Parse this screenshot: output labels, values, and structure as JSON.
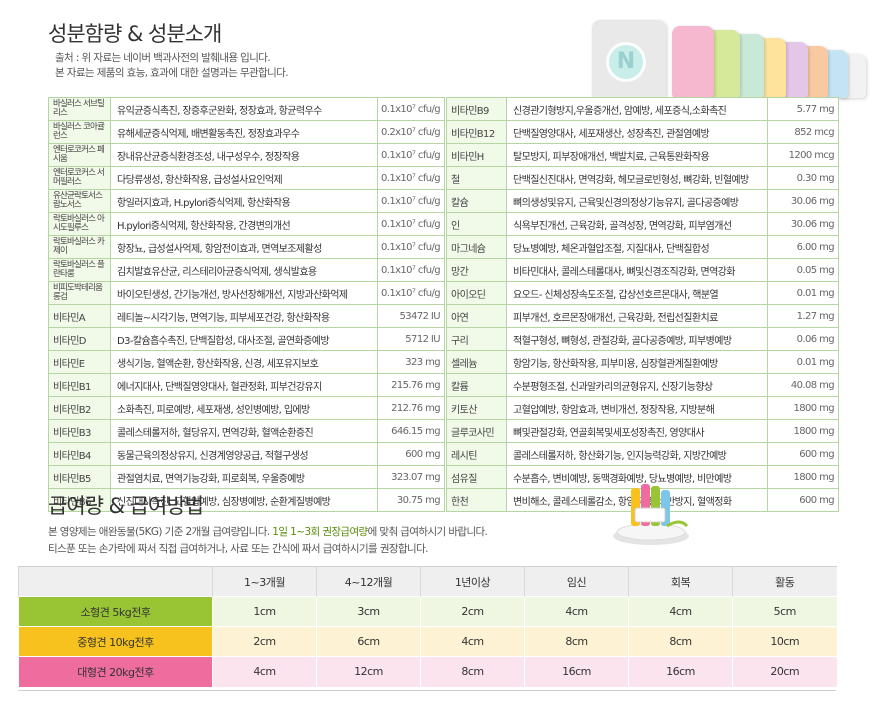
{
  "section1": {
    "title": "성분함량 & 성분소개",
    "note_line1": "출처 : 위 자료는 네이버 백과사전의 발췌내용 입니다.",
    "note_line2": "본 자료는 제품의 효능, 효과에 대한 설명과는 무관합니다."
  },
  "product_logo_letter": "N",
  "product_tube_colors": [
    "#e6e6e6",
    "#f5b8cf",
    "#d6e89a",
    "#c8e8d8",
    "#fde39c",
    "#e3c6e8",
    "#f9c9a2",
    "#c4e4f4",
    "#f2f2f2",
    "#ffffff"
  ],
  "left_table": [
    {
      "name": "바실러스 서브틸리스",
      "desc": "유익균증식촉진, 장증후군완화, 정장효과, 항균력우수",
      "amount": "0.1x10⁷ cfu/g"
    },
    {
      "name": "바실러스 코아귤런스",
      "desc": "유해세균증식억제, 배변활동촉진, 정장효과우수",
      "amount": "0.2x10⁷ cfu/g"
    },
    {
      "name": "엔터로코커스 페시움",
      "desc": "장내유산균증식환경조성, 내구성우수, 정장작용",
      "amount": "0.1x10⁷ cfu/g"
    },
    {
      "name": "엔터로코커스 서머필러스",
      "desc": "다당류생성, 항산화작용, 급성설사요인억제",
      "amount": "0.1x10⁷ cfu/g"
    },
    {
      "name": "유산균락토서스 람노서스",
      "desc": "항일러지효과, H.pylori증식억제, 항산화작용",
      "amount": "0.1x10⁷ cfu/g"
    },
    {
      "name": "락토바실러스 아시도필루스",
      "desc": "H.pylori증식억제, 항산화작용, 간경변의개선",
      "amount": "0.1x10⁷ cfu/g"
    },
    {
      "name": "락토바실러스 카제이",
      "desc": "항장뇨, 급성설사억제, 항암전이효과, 면역보조제활성",
      "amount": "0.1x10⁷ cfu/g"
    },
    {
      "name": "락토바실러스 플란타룸",
      "desc": "김치발효유산균, 리스테리아균증식억제, 생식발효용",
      "amount": "0.1x10⁷ cfu/g"
    },
    {
      "name": "비피도박테리움 롱검",
      "desc": "바이오틴생성, 간기능개선, 방사선장해개선, 지방과산화억제",
      "amount": "0.1x10⁷ cfu/g"
    },
    {
      "name": "비타민A",
      "desc": "레티놀~시각기능, 면역기능, 피부세포건강, 항산화작용",
      "amount": "53472 IU"
    },
    {
      "name": "비타민D",
      "desc": "D3-칼슘흡수촉진, 단백질합성, 대사조절, 골연화증예방",
      "amount": "5712 IU"
    },
    {
      "name": "비타민E",
      "desc": "생식기능, 혈액순환, 항산화작용, 신경, 세포유지보호",
      "amount": "323 mg"
    },
    {
      "name": "비타민B1",
      "desc": "에너지대사, 단백질영양대사, 혈관정화, 피부건강유지",
      "amount": "215.76 mg"
    },
    {
      "name": "비타민B2",
      "desc": "소화촉진, 피로예방, 세포재생, 성인병예방, 입에방",
      "amount": "212.76 mg"
    },
    {
      "name": "비타민B3",
      "desc": "콜레스테롤저하, 혈당유지, 면역강화, 혈액순환증진",
      "amount": "646.15 mg"
    },
    {
      "name": "비타민B4",
      "desc": "동물근육의정상유지, 신경계영양공급, 적혈구생성",
      "amount": "600 mg"
    },
    {
      "name": "비타민B5",
      "desc": "관절염치료, 면역기능강화, 피로회복, 우울증예방",
      "amount": "323.07 mg"
    },
    {
      "name": "비타민B6",
      "desc": "신진대사촉진, 고혈압예방, 심장병예방, 순환계질병예방",
      "amount": "30.75 mg"
    }
  ],
  "right_table": [
    {
      "name": "비타민B9",
      "desc": "신경관기형방지,우울증개선, 암예방, 세포증식,소화촉진",
      "amount": "5.77 mg"
    },
    {
      "name": "비타민B12",
      "desc": "단백질영양대사, 세포재생산, 성장촉진, 관절염예방",
      "amount": "852 mcg"
    },
    {
      "name": "비타민H",
      "desc": "탈모방지, 피부장애개선, 백발치료, 근육통완화작용",
      "amount": "1200 mcg"
    },
    {
      "name": "철",
      "desc": "단백질신진대사, 면역강화, 헤모글로빈형성, 뼈강화, 빈혈예방",
      "amount": "0.30 mg"
    },
    {
      "name": "칼슘",
      "desc": "뼈의생성및유지, 근육및신경의정상기능유지, 골다공증예방",
      "amount": "30.06 mg"
    },
    {
      "name": "인",
      "desc": "식욕부진개선, 근육강화, 골격성장, 면역강화, 피부염개선",
      "amount": "30.06 mg"
    },
    {
      "name": "마그네슘",
      "desc": "당뇨병예방, 체온과혈압조절, 지질대사, 단백질합성",
      "amount": "6.00 mg"
    },
    {
      "name": "망간",
      "desc": "비타민대사, 콜레스테롤대사, 뼈및신경조직강화, 면역강화",
      "amount": "0.05 mg"
    },
    {
      "name": "아이오딘",
      "desc": "요오드- 신체성장속도조절, 갑상선호르몬대사, 핵분열",
      "amount": "0.01 mg"
    },
    {
      "name": "아연",
      "desc": "피부개선, 호르몬장애개선, 근육강화, 전립선질환치료",
      "amount": "1.27 mg"
    },
    {
      "name": "구리",
      "desc": "적혈구형성, 뼈형성, 관절강화, 골다공증예방, 피부병예방",
      "amount": "0.06 mg"
    },
    {
      "name": "셀레늄",
      "desc": "항암기능, 항산화작용, 피부미용, 심장혈관계질환예방",
      "amount": "0.01 mg"
    },
    {
      "name": "칼륨",
      "desc": "수분평형조절, 신과알카리의균형유지, 신장기능향상",
      "amount": "40.08 mg"
    },
    {
      "name": "키토산",
      "desc": "고혈압예방, 항암효과, 변비개선, 정장작용, 지방분해",
      "amount": "1800 mg"
    },
    {
      "name": "글루코사민",
      "desc": "뼈및관절강화, 연골회복및세포성장촉진, 영양대사",
      "amount": "1800 mg"
    },
    {
      "name": "레시틴",
      "desc": "콜레스테롤저하, 항산화기능, 인지능력강화, 지방간예방",
      "amount": "600 mg"
    },
    {
      "name": "섬유질",
      "desc": "수분흡수, 변비예방, 동맥경화예방, 당뇨병예방, 비만예방",
      "amount": "1800 mg"
    },
    {
      "name": "한천",
      "desc": "변비해소, 콜레스테롤감소, 항암작용, 비만방지, 혈액정화",
      "amount": "600 mg"
    }
  ],
  "section2": {
    "title": "급여량 & 급여방법",
    "line1_pre": "본 영양제는 애완동물(5KG) 기준 2개월 급여량입니다. ",
    "line1_hl": "1일 1~3회 권장급여량",
    "line1_post": "에 맞춰 급여하시기 바랍니다.",
    "line2": "티스푼 또는 손가락에 짜서 직접 급여하거나, 사료 또는 간식에 짜서 급여하시기를 권장합니다."
  },
  "dosage": {
    "headers": [
      "1~3개월",
      "4~12개월",
      "1년이상",
      "임신",
      "회복",
      "활동"
    ],
    "rows": [
      {
        "label": "소형견 5kg전후",
        "values": [
          "1cm",
          "3cm",
          "2cm",
          "4cm",
          "4cm",
          "5cm"
        ]
      },
      {
        "label": "중형견 10kg전후",
        "values": [
          "2cm",
          "6cm",
          "4cm",
          "8cm",
          "8cm",
          "10cm"
        ]
      },
      {
        "label": "대형견 20kg전후",
        "values": [
          "4cm",
          "12cm",
          "8cm",
          "16cm",
          "16cm",
          "20cm"
        ]
      }
    ],
    "colors": {
      "small": "#99c434",
      "medium": "#f7c21d",
      "large": "#ee6c9e"
    }
  }
}
